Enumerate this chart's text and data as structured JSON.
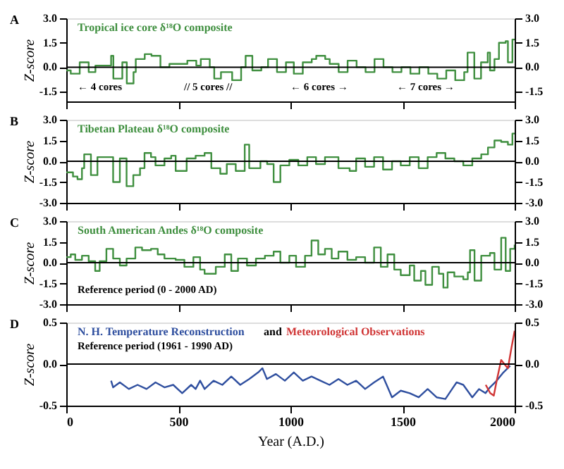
{
  "chart_data": [
    {
      "type": "step",
      "title": "A",
      "ylabel": "Z-score",
      "xlim": [
        0,
        2000
      ],
      "xticks": [
        {
          "value": 0,
          "label": null
        },
        {
          "value": 500,
          "label": null
        },
        {
          "value": 1000,
          "label": null
        },
        {
          "value": 1500,
          "label": null
        },
        {
          "value": 2000,
          "label": null
        }
      ],
      "ylim": [
        -2.1,
        3
      ],
      "yticks": [
        {
          "value": 3,
          "label": "3.0"
        },
        {
          "value": 1.5,
          "label": "1.5"
        },
        {
          "value": 0,
          "label": "0.0"
        },
        {
          "value": -1.5,
          "label": "-1.5"
        }
      ],
      "y2lim": [
        -2.1,
        3
      ],
      "y2ticks": [
        {
          "value": 3,
          "label": "3.0"
        },
        {
          "value": 1.5,
          "label": "1.5"
        },
        {
          "value": 0,
          "label": "0.0"
        },
        {
          "value": -1.5,
          "label": "-1.5"
        }
      ],
      "tick_labels": "y",
      "grid": false,
      "legend": "top left",
      "ref_lines": [
        {
          "axis": "y",
          "value": 0,
          "color": "#000000"
        }
      ],
      "annotations": [
        "← 4 cores",
        "// 5 cores //",
        "← 6 cores →",
        "← 7 cores →"
      ],
      "series": [
        {
          "name": "Tropical ice core δ¹⁸O composite",
          "color": "#3f8f3f",
          "x": [
            0,
            20,
            60,
            100,
            130,
            180,
            200,
            210,
            250,
            270,
            300,
            310,
            350,
            380,
            420,
            460,
            500,
            540,
            580,
            600,
            640,
            660,
            690,
            720,
            740,
            780,
            800,
            830,
            870,
            900,
            940,
            980,
            1015,
            1055,
            1095,
            1115,
            1155,
            1175,
            1215,
            1255,
            1295,
            1335,
            1375,
            1415,
            1455,
            1495,
            1535,
            1575,
            1615,
            1655,
            1695,
            1735,
            1775,
            1790,
            1820,
            1850,
            1880,
            1890,
            1910,
            1930,
            1960,
            1970,
            1990,
            2000
          ],
          "values": [
            -0.2,
            -0.4,
            0.3,
            -0.3,
            0.1,
            0.1,
            0.7,
            -0.7,
            0.3,
            -1.0,
            -0.3,
            0.5,
            0.8,
            0.7,
            0.0,
            0.2,
            0.2,
            0.4,
            0.1,
            0.5,
            0.0,
            -0.7,
            -0.3,
            -0.3,
            -0.8,
            0.0,
            0.7,
            -0.2,
            0.0,
            0.5,
            -0.3,
            0.3,
            -0.4,
            0.3,
            0.5,
            0.7,
            0.5,
            0.2,
            -0.3,
            0.4,
            0.0,
            -0.3,
            0.5,
            0.0,
            -0.3,
            0.0,
            -0.4,
            0.0,
            -0.4,
            -0.7,
            -0.2,
            -0.8,
            -0.3,
            0.9,
            -0.7,
            0.3,
            0.9,
            -0.2,
            0.5,
            1.5,
            1.6,
            0.3,
            1.7,
            1.7
          ]
        }
      ]
    },
    {
      "type": "step",
      "title": "B",
      "ylabel": "Z-score",
      "xlim": [
        0,
        2000
      ],
      "xticks": [
        {
          "value": 0,
          "label": null
        },
        {
          "value": 500,
          "label": null
        },
        {
          "value": 1000,
          "label": null
        },
        {
          "value": 1500,
          "label": null
        },
        {
          "value": 2000,
          "label": null
        }
      ],
      "ylim": [
        -3,
        3
      ],
      "yticks": [
        {
          "value": 3,
          "label": "3.0"
        },
        {
          "value": 1.5,
          "label": "1.5"
        },
        {
          "value": 0,
          "label": "0.0"
        },
        {
          "value": -1.5,
          "label": "-1.5"
        },
        {
          "value": -3,
          "label": "-3.0"
        }
      ],
      "y2lim": [
        -3,
        3
      ],
      "y2ticks": [
        {
          "value": 3,
          "label": "3.0"
        },
        {
          "value": 1.5,
          "label": "1.5"
        },
        {
          "value": 0,
          "label": "0.0"
        },
        {
          "value": -1.5,
          "label": "-1.5"
        },
        {
          "value": -3,
          "label": "-3.0"
        }
      ],
      "tick_labels": "y",
      "grid": false,
      "legend": "top left",
      "ref_lines": [
        {
          "axis": "y",
          "value": 0,
          "color": "#000000"
        }
      ],
      "series": [
        {
          "name": "Tibetan Plateau δ¹⁸O composite",
          "color": "#3f8f3f",
          "x": [
            0,
            30,
            50,
            70,
            80,
            110,
            139,
            179,
            209,
            239,
            269,
            299,
            329,
            349,
            378,
            398,
            438,
            468,
            488,
            537,
            577,
            617,
            647,
            687,
            716,
            756,
            796,
            816,
            866,
            896,
            925,
            955,
            995,
            1035,
            1075,
            1114,
            1154,
            1214,
            1264,
            1293,
            1333,
            1373,
            1413,
            1453,
            1492,
            1532,
            1572,
            1612,
            1652,
            1691,
            1731,
            1771,
            1811,
            1851,
            1881,
            1910,
            1940,
            1970,
            1990,
            2000
          ],
          "values": [
            -0.8,
            -1.1,
            -1.3,
            -0.5,
            0.5,
            -1.0,
            0.3,
            0.3,
            -1.5,
            0.2,
            -1.8,
            -1.0,
            -0.5,
            0.6,
            0.3,
            -0.3,
            0.2,
            0.4,
            -0.7,
            0.2,
            0.4,
            0.6,
            -0.5,
            -0.9,
            -0.2,
            -0.7,
            1.2,
            -0.5,
            0.0,
            -0.2,
            -1.5,
            -0.3,
            0.1,
            -0.3,
            0.3,
            -0.2,
            0.3,
            -0.5,
            -0.7,
            0.2,
            -0.4,
            0.3,
            -0.6,
            0.0,
            -0.3,
            0.3,
            -0.5,
            0.3,
            0.6,
            0.2,
            0.0,
            -0.3,
            0.2,
            0.5,
            1.0,
            1.5,
            1.4,
            1.2,
            2.0,
            2.0
          ]
        }
      ]
    },
    {
      "type": "step",
      "title": "C",
      "ylabel": "Z-score",
      "xlim": [
        0,
        2000
      ],
      "xticks": [
        {
          "value": 0,
          "label": null
        },
        {
          "value": 500,
          "label": null
        },
        {
          "value": 1000,
          "label": null
        },
        {
          "value": 1500,
          "label": null
        },
        {
          "value": 2000,
          "label": null
        }
      ],
      "ylim": [
        -3,
        3
      ],
      "yticks": [
        {
          "value": 3,
          "label": "3.0"
        },
        {
          "value": 1.5,
          "label": "1.5"
        },
        {
          "value": 0,
          "label": "0.0"
        },
        {
          "value": -1.5,
          "label": "-1.5"
        },
        {
          "value": -3,
          "label": "-3.0"
        }
      ],
      "y2lim": [
        -3,
        3
      ],
      "y2ticks": [
        {
          "value": 3,
          "label": "3.0"
        },
        {
          "value": 1.5,
          "label": "1.5"
        },
        {
          "value": 0,
          "label": "0.0"
        },
        {
          "value": -1.5,
          "label": "-1.5"
        },
        {
          "value": -3,
          "label": "-3.0"
        }
      ],
      "tick_labels": "y",
      "grid": false,
      "legend": "top left",
      "ref_lines": [
        {
          "axis": "y",
          "value": 0,
          "color": "#000000"
        }
      ],
      "annotations": [
        "Reference period (0 - 2000 AD)"
      ],
      "series": [
        {
          "name": "South American Andes δ¹⁸O composite",
          "color": "#3f8f3f",
          "x": [
            0,
            20,
            40,
            70,
            100,
            129,
            149,
            179,
            209,
            239,
            269,
            308,
            338,
            378,
            408,
            438,
            488,
            527,
            567,
            597,
            617,
            667,
            707,
            736,
            766,
            806,
            846,
            886,
            925,
            955,
            995,
            1025,
            1065,
            1094,
            1124,
            1154,
            1184,
            1214,
            1254,
            1293,
            1333,
            1373,
            1403,
            1433,
            1463,
            1492,
            1532,
            1552,
            1582,
            1602,
            1632,
            1662,
            1682,
            1701,
            1731,
            1771,
            1791,
            1801,
            1821,
            1851,
            1890,
            1910,
            1940,
            1960,
            1980,
            2000
          ],
          "values": [
            0.4,
            0.6,
            0.2,
            0.5,
            0.1,
            -0.6,
            0.1,
            1.0,
            0.3,
            -0.2,
            0.3,
            1.1,
            0.9,
            1.0,
            0.6,
            0.3,
            0.2,
            -0.3,
            0.4,
            -0.5,
            -0.8,
            -0.3,
            0.6,
            -0.6,
            0.3,
            -0.2,
            0.3,
            0.5,
            0.8,
            0.0,
            0.5,
            -0.3,
            0.5,
            1.6,
            0.6,
            1.0,
            0.3,
            0.8,
            0.2,
            0.4,
            0.0,
            1.1,
            -0.3,
            0.6,
            -0.5,
            -0.9,
            -0.2,
            -1.3,
            -0.6,
            -1.6,
            -0.3,
            -0.8,
            -1.8,
            -0.7,
            -1.0,
            -1.2,
            -0.7,
            0.9,
            -1.3,
            0.5,
            0.7,
            -0.5,
            1.8,
            -0.6,
            1.0,
            1.3
          ]
        }
      ]
    },
    {
      "type": "line",
      "title": "D",
      "ylabel": "Z-score",
      "xlabel": "Year (A.D.)",
      "xlim": [
        0,
        2000
      ],
      "xticks": [
        0,
        500,
        1000,
        1500,
        2000
      ],
      "ylim": [
        -0.5,
        0.5
      ],
      "yticks": [
        {
          "value": 0.5,
          "label": "0.5"
        },
        {
          "value": 0,
          "label": "0.0"
        },
        {
          "value": -0.5,
          "label": "-0.5"
        }
      ],
      "y2lim": [
        -0.5,
        0.5
      ],
      "y2ticks": [
        {
          "value": 0.5,
          "label": "0.5"
        },
        {
          "value": 0,
          "label": "0.0"
        },
        {
          "value": -0.5,
          "label": "-0.5"
        }
      ],
      "grid": false,
      "legend": "top left",
      "ref_lines": [
        {
          "axis": "y",
          "value": 0,
          "color": "#000000"
        }
      ],
      "annotations": [
        "and",
        "Reference period (1961 - 1990 AD)"
      ],
      "series": [
        {
          "name": "N. H. Temperature Reconstruction",
          "color": "#2f4f9f",
          "x": [
            200,
            209,
            239,
            279,
            318,
            358,
            398,
            438,
            477,
            517,
            557,
            577,
            597,
            617,
            657,
            696,
            736,
            776,
            816,
            856,
            875,
            895,
            935,
            975,
            1015,
            1055,
            1094,
            1134,
            1174,
            1214,
            1254,
            1293,
            1333,
            1373,
            1413,
            1453,
            1492,
            1532,
            1572,
            1612,
            1652,
            1691,
            1721,
            1741,
            1771,
            1811,
            1841,
            1870,
            1890,
            1920,
            1950,
            1980
          ],
          "values": [
            -0.2,
            -0.28,
            -0.22,
            -0.3,
            -0.25,
            -0.3,
            -0.22,
            -0.28,
            -0.25,
            -0.35,
            -0.25,
            -0.3,
            -0.2,
            -0.3,
            -0.2,
            -0.25,
            -0.15,
            -0.25,
            -0.18,
            -0.1,
            -0.05,
            -0.18,
            -0.12,
            -0.2,
            -0.1,
            -0.2,
            -0.15,
            -0.2,
            -0.25,
            -0.18,
            -0.25,
            -0.2,
            -0.3,
            -0.22,
            -0.15,
            -0.4,
            -0.32,
            -0.35,
            -0.4,
            -0.3,
            -0.4,
            -0.42,
            -0.3,
            -0.22,
            -0.25,
            -0.4,
            -0.3,
            -0.35,
            -0.28,
            -0.2,
            -0.1,
            -0.02
          ]
        },
        {
          "name": "Meteorological Observations",
          "color": "#d03535",
          "x": [
            1871,
            1891,
            1907,
            1920,
            1940,
            1954,
            1970,
            1986,
            2000
          ],
          "values": [
            -0.25,
            -0.35,
            -0.38,
            -0.2,
            0.05,
            0.0,
            -0.05,
            0.2,
            0.4
          ]
        }
      ]
    }
  ]
}
